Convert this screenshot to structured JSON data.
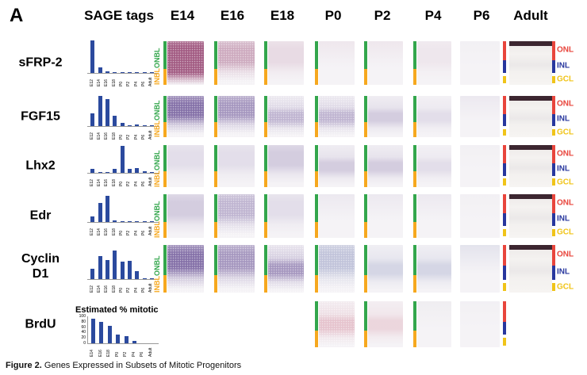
{
  "panel_label": "A",
  "header": {
    "sage_label": "SAGE tags",
    "stages": [
      "E14",
      "E16",
      "E18",
      "P0",
      "P2",
      "P4",
      "P6",
      "Adult"
    ]
  },
  "caption": {
    "bold": "Figure 2.",
    "text": " Genes Expressed in Subsets of Mitotic Progenitors"
  },
  "colors": {
    "bar_blue": "#2b4a9e",
    "onbl_green": "#33a64c",
    "inbl_orange": "#f6a81f",
    "onl_red": "#e8453c",
    "inl_blue": "#28379e",
    "gcl_yellow": "#f0c419"
  },
  "embryonic_layers": [
    {
      "label": "ONBL",
      "color": "#33a64c"
    },
    {
      "label": "INBL",
      "color": "#f6a81f"
    }
  ],
  "adult_layers": [
    {
      "label": "ONL",
      "color": "#e8453c"
    },
    {
      "label": "INL",
      "color": "#28379e"
    },
    {
      "label": "GCL",
      "color": "#f0c419"
    }
  ],
  "brdu": {
    "title": "Estimated % mitotic",
    "yticks": [
      100,
      80,
      60,
      40,
      20,
      0
    ]
  },
  "chart_data": [
    {
      "type": "bar",
      "gene": "sFRP-2",
      "title": "SAGE tags",
      "categories": [
        "E12",
        "E14",
        "E16",
        "E18",
        "P0",
        "P2",
        "P4",
        "P6",
        "Adult"
      ],
      "values": [
        1.0,
        0.18,
        0.04,
        0.03,
        0.03,
        0.02,
        0.02,
        0.02,
        0.03
      ],
      "units": "relative tag count"
    },
    {
      "type": "bar",
      "gene": "FGF15",
      "title": "SAGE tags",
      "categories": [
        "E12",
        "E14",
        "E16",
        "E18",
        "P0",
        "P2",
        "P4",
        "P6",
        "Adult"
      ],
      "values": [
        0.42,
        1.0,
        0.9,
        0.35,
        0.1,
        0.02,
        0.05,
        0.01,
        0.02
      ],
      "units": "relative tag count"
    },
    {
      "type": "bar",
      "gene": "Lhx2",
      "title": "SAGE tags",
      "categories": [
        "E12",
        "E14",
        "E16",
        "E18",
        "P0",
        "P2",
        "P4",
        "P6",
        "Adult"
      ],
      "values": [
        0.14,
        0.02,
        0.01,
        0.15,
        1.0,
        0.14,
        0.19,
        0.06,
        0.04
      ],
      "units": "relative tag count"
    },
    {
      "type": "bar",
      "gene": "Edr",
      "title": "SAGE tags",
      "categories": [
        "E12",
        "E14",
        "E16",
        "E18",
        "P0",
        "P2",
        "P4",
        "P6",
        "Adult"
      ],
      "values": [
        0.2,
        0.72,
        1.0,
        0.06,
        0.01,
        0.01,
        0.01,
        0.01,
        0.04
      ],
      "units": "relative tag count"
    },
    {
      "type": "bar",
      "gene": "Cyclin D1",
      "title": "SAGE tags",
      "categories": [
        "E12",
        "E14",
        "E16",
        "E18",
        "P0",
        "P2",
        "P4",
        "P6",
        "Adult"
      ],
      "values": [
        0.35,
        0.8,
        0.67,
        1.0,
        0.6,
        0.63,
        0.27,
        0.03,
        0.02
      ],
      "units": "relative tag count"
    },
    {
      "type": "bar",
      "gene": "BrdU",
      "title": "Estimated % mitotic",
      "categories": [
        "E14",
        "E16",
        "E18",
        "P0",
        "P2",
        "P4",
        "P6",
        "Adult"
      ],
      "values": [
        90,
        78,
        65,
        32,
        25,
        8,
        0,
        0
      ],
      "ylim": [
        0,
        100
      ],
      "yticks": [
        100,
        80,
        60,
        40,
        20,
        0
      ]
    }
  ],
  "rows": [
    {
      "gene": "sFRP-2",
      "gene_lines": [
        "sFRP-2"
      ],
      "layer_labels_visible": true,
      "images": [
        {
          "stage": "E14",
          "hue": "magenta",
          "band": "full",
          "intensity": "dense",
          "bar": true
        },
        {
          "stage": "E16",
          "hue": "magenta",
          "band": "top",
          "intensity": "medium",
          "bar": true
        },
        {
          "stage": "E18",
          "hue": "magenta",
          "band": "top",
          "intensity": "faint",
          "bar": true
        },
        {
          "stage": "P0",
          "hue": "magenta",
          "band": "none",
          "intensity": "trace",
          "bar": true
        },
        {
          "stage": "P2",
          "hue": "magenta",
          "band": "none",
          "intensity": "trace",
          "bar": true
        },
        {
          "stage": "P4",
          "hue": "magenta",
          "band": "top",
          "intensity": "trace",
          "bar": true
        },
        {
          "stage": "P6",
          "hue": "gray",
          "band": "none",
          "intensity": "trace",
          "bar": false
        }
      ],
      "adult": {
        "image": true,
        "labels": true,
        "left_bar": true,
        "right_bar": true
      }
    },
    {
      "gene": "FGF15",
      "gene_lines": [
        "FGF15"
      ],
      "layer_labels_visible": true,
      "images": [
        {
          "stage": "E14",
          "hue": "purple",
          "band": "top",
          "intensity": "dense",
          "bar": true
        },
        {
          "stage": "E16",
          "hue": "purple",
          "band": "top",
          "intensity": "strong",
          "bar": true
        },
        {
          "stage": "E18",
          "hue": "purple",
          "band": "middle",
          "intensity": "medium",
          "bar": true
        },
        {
          "stage": "P0",
          "hue": "purple",
          "band": "middle",
          "intensity": "medium",
          "bar": true
        },
        {
          "stage": "P2",
          "hue": "purple",
          "band": "middle",
          "intensity": "light",
          "bar": true
        },
        {
          "stage": "P4",
          "hue": "purple",
          "band": "middle",
          "intensity": "faint",
          "bar": true
        },
        {
          "stage": "P6",
          "hue": "purple",
          "band": "none",
          "intensity": "trace",
          "bar": false
        }
      ],
      "adult": {
        "image": true,
        "labels": true,
        "left_bar": true,
        "right_bar": true
      }
    },
    {
      "gene": "Lhx2",
      "gene_lines": [
        "Lhx2"
      ],
      "layer_labels_visible": true,
      "images": [
        {
          "stage": "E14",
          "hue": "purple",
          "band": "top",
          "intensity": "faint",
          "bar": true
        },
        {
          "stage": "E16",
          "hue": "purple",
          "band": "top",
          "intensity": "faint",
          "bar": true
        },
        {
          "stage": "E18",
          "hue": "purple",
          "band": "top",
          "intensity": "light",
          "bar": true
        },
        {
          "stage": "P0",
          "hue": "purple",
          "band": "middle",
          "intensity": "light",
          "bar": true
        },
        {
          "stage": "P2",
          "hue": "purple",
          "band": "middle",
          "intensity": "light",
          "bar": true
        },
        {
          "stage": "P4",
          "hue": "purple",
          "band": "middle",
          "intensity": "faint",
          "bar": true
        },
        {
          "stage": "P6",
          "hue": "gray",
          "band": "none",
          "intensity": "trace",
          "bar": false
        }
      ],
      "adult": {
        "image": true,
        "labels": true,
        "left_bar": true,
        "right_bar": true
      }
    },
    {
      "gene": "Edr",
      "gene_lines": [
        "Edr"
      ],
      "layer_labels_visible": true,
      "images": [
        {
          "stage": "E14",
          "hue": "purple",
          "band": "top",
          "intensity": "light",
          "bar": true
        },
        {
          "stage": "E16",
          "hue": "purple",
          "band": "top",
          "intensity": "medium",
          "bar": true
        },
        {
          "stage": "E18",
          "hue": "purple",
          "band": "top",
          "intensity": "faint",
          "bar": true
        },
        {
          "stage": "P0",
          "hue": "purple",
          "band": "none",
          "intensity": "trace",
          "bar": true
        },
        {
          "stage": "P2",
          "hue": "purple",
          "band": "none",
          "intensity": "trace",
          "bar": true
        },
        {
          "stage": "P4",
          "hue": "purple",
          "band": "none",
          "intensity": "trace",
          "bar": true
        },
        {
          "stage": "P6",
          "hue": "gray",
          "band": "none",
          "intensity": "trace",
          "bar": false
        }
      ],
      "adult": {
        "image": true,
        "labels": true,
        "left_bar": true,
        "right_bar": true
      }
    },
    {
      "gene": "Cyclin D1",
      "gene_lines": [
        "Cyclin",
        "D1"
      ],
      "layer_labels_visible": true,
      "images": [
        {
          "stage": "E14",
          "hue": "purple",
          "band": "top",
          "intensity": "dense",
          "bar": true
        },
        {
          "stage": "E16",
          "hue": "purple",
          "band": "top",
          "intensity": "strong",
          "bar": true
        },
        {
          "stage": "E18",
          "hue": "purple",
          "band": "middle",
          "intensity": "strong",
          "bar": true
        },
        {
          "stage": "P0",
          "hue": "blue",
          "band": "top",
          "intensity": "medium",
          "bar": true
        },
        {
          "stage": "P2",
          "hue": "blue",
          "band": "middle",
          "intensity": "light",
          "bar": true
        },
        {
          "stage": "P4",
          "hue": "blue",
          "band": "middle",
          "intensity": "light",
          "bar": true
        },
        {
          "stage": "P6",
          "hue": "blue",
          "band": "none",
          "intensity": "faint",
          "bar": false
        }
      ],
      "adult": {
        "image": true,
        "labels": true,
        "left_bar": true,
        "right_bar": true
      }
    },
    {
      "gene": "BrdU",
      "gene_lines": [
        "BrdU"
      ],
      "layer_labels_visible": false,
      "images": [
        {
          "stage": "P0",
          "hue": "pink",
          "band": "middle",
          "intensity": "medium",
          "bar": true
        },
        {
          "stage": "P2",
          "hue": "pink",
          "band": "middle",
          "intensity": "light",
          "bar": true
        },
        {
          "stage": "P4",
          "hue": "gray",
          "band": "none",
          "intensity": "faint",
          "bar": true
        },
        {
          "stage": "P6",
          "hue": "gray",
          "band": "none",
          "intensity": "trace",
          "bar": false
        }
      ],
      "adult": {
        "image": false,
        "labels": false,
        "left_bar": true,
        "right_bar": false
      }
    }
  ]
}
